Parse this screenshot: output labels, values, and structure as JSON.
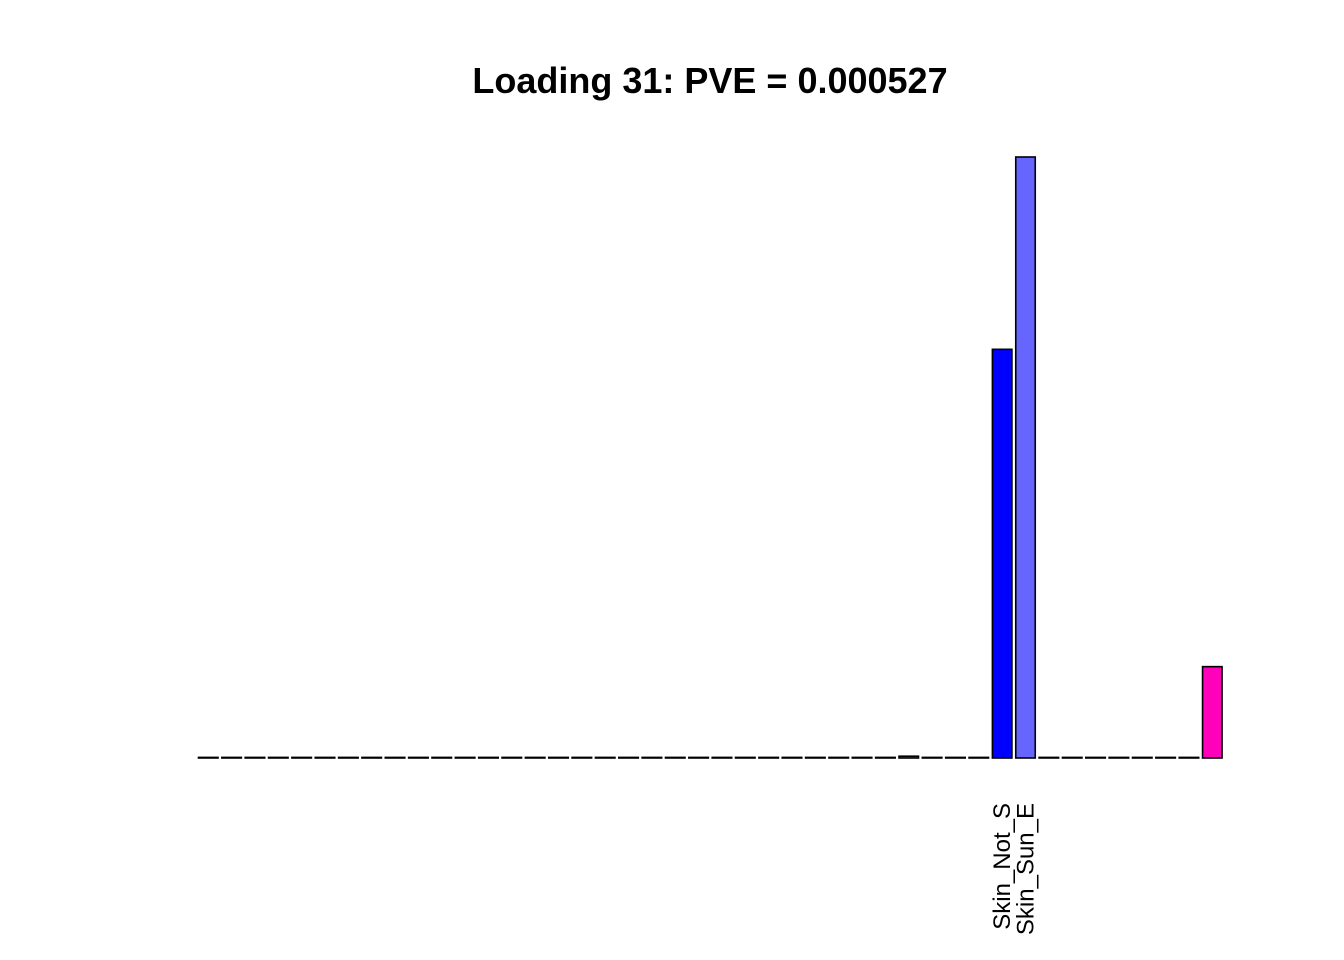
{
  "chart_data": {
    "type": "bar",
    "title": "Loading 31: PVE = 0.000527",
    "xlabel": "",
    "ylabel": "",
    "axes_visible": false,
    "grid": false,
    "ylim": [
      0,
      1
    ],
    "labeled_categories": [
      {
        "index": 34,
        "label": "Skin_Not_S"
      },
      {
        "index": 35,
        "label": "Skin_Sun_E"
      }
    ],
    "values": [
      0,
      0,
      0,
      0,
      0,
      0,
      0,
      0,
      0,
      0,
      0,
      0,
      0,
      0,
      0,
      0,
      0,
      0,
      0,
      0,
      0,
      0,
      0,
      0,
      0,
      0,
      0,
      0,
      0,
      0,
      0.003,
      0,
      0,
      0,
      0.68,
      1.0,
      0,
      0,
      0,
      0,
      0,
      0,
      0,
      0.152
    ],
    "colors": [
      "#1f9e89",
      "#26828e",
      "#31688e",
      "#3e4a89",
      "#482878",
      "#440154",
      "#6ece58",
      "#b5de2b",
      "#fde725",
      "#fdae61",
      "#f46d43",
      "#d73027",
      "#a50026",
      "#313695",
      "#4575b4",
      "#74add1",
      "#abd9e9",
      "#e0f3f8",
      "#ffffbf",
      "#fee090",
      "#fdae61",
      "#8c510a",
      "#bf812d",
      "#dfc27d",
      "#80cdc1",
      "#35978f",
      "#01665e",
      "#762a83",
      "#9970ab",
      "#c2a5cf",
      "#5aae61",
      "#1b7837",
      "#00441b",
      "#40004b",
      "#0000ff",
      "#6666ff",
      "#7f3b08",
      "#b35806",
      "#e08214",
      "#fdb863",
      "#542788",
      "#2d004b",
      "#8073ac",
      "#ff00bb"
    ]
  }
}
